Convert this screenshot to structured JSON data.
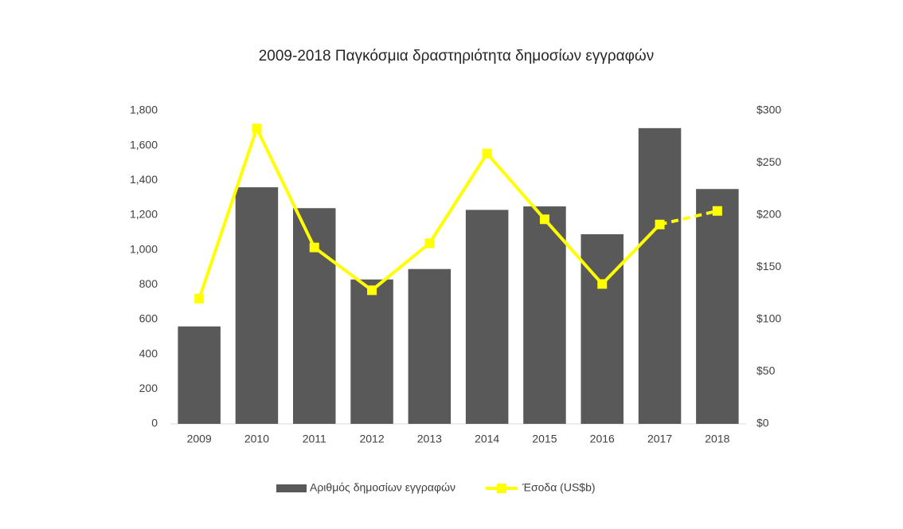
{
  "chart_data": {
    "type": "bar-line",
    "title": "2009-2018 Παγκόσμια δραστηριότητα δημοσίων εγγραφών",
    "categories": [
      "2009",
      "2010",
      "2011",
      "2012",
      "2013",
      "2014",
      "2015",
      "2016",
      "2017",
      "2018"
    ],
    "series": [
      {
        "name": "Αριθμός δημοσίων εγγραφών",
        "type": "bar",
        "color": "#595959",
        "values": [
          560,
          1360,
          1240,
          830,
          890,
          1230,
          1250,
          1090,
          1700,
          1350
        ]
      },
      {
        "name": "Έσοδα (US$b)",
        "type": "line",
        "axis": "y2",
        "color": "#ffff00",
        "dash_from": 8,
        "values": [
          120,
          283,
          169,
          128,
          173,
          259,
          196,
          134,
          191,
          204
        ]
      }
    ],
    "ylim": [
      0,
      1800
    ],
    "yticks": [
      0,
      200,
      400,
      600,
      800,
      {
        "value": 1000,
        "label": "1,000"
      },
      {
        "value": 1200,
        "label": "1,200"
      },
      {
        "value": 1400,
        "label": "1,400"
      },
      {
        "value": 1600,
        "label": "1,600"
      },
      {
        "value": 1800,
        "label": "1,800"
      }
    ],
    "y2lim": [
      0,
      300
    ],
    "y2ticks": [
      {
        "value": 0,
        "label": "$0"
      },
      {
        "value": 50,
        "label": "$50"
      },
      {
        "value": 100,
        "label": "$100"
      },
      {
        "value": 150,
        "label": "$150"
      },
      {
        "value": 200,
        "label": "$200"
      },
      {
        "value": 250,
        "label": "$250"
      },
      {
        "value": 300,
        "label": "$300"
      }
    ],
    "legend": "bottom"
  }
}
